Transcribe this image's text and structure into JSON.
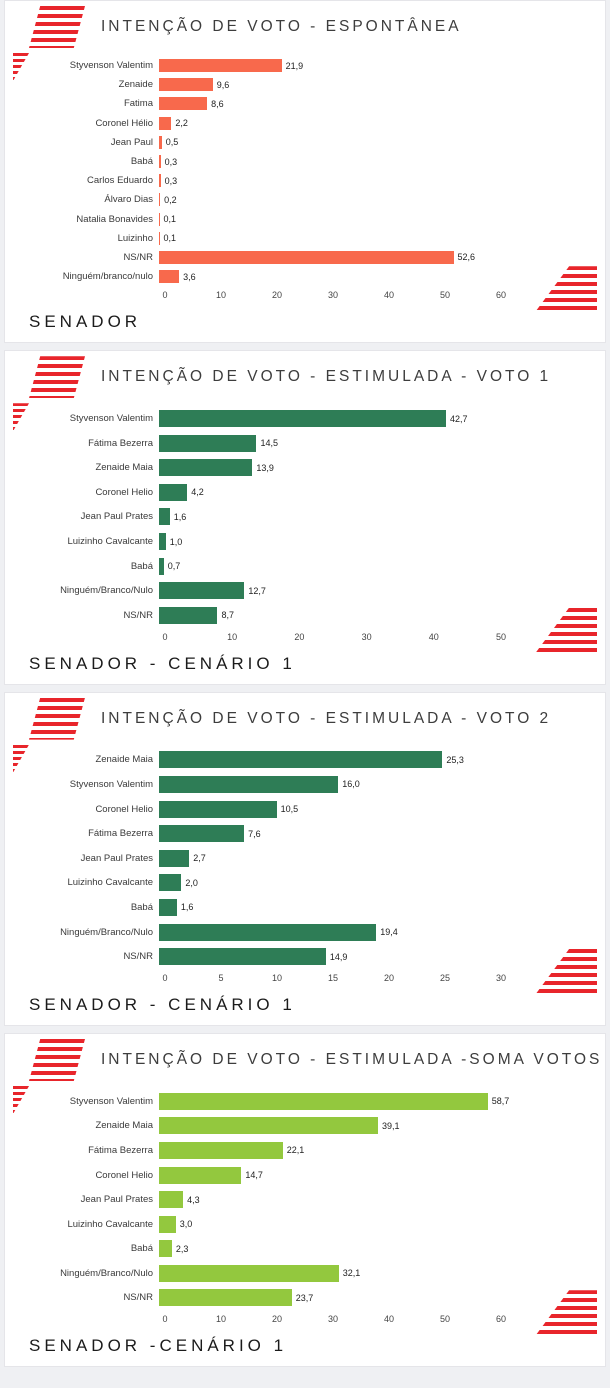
{
  "page": {
    "background_color": "#eff0f3",
    "card_color": "#ffffff",
    "brand_stripe_color": "#e8252b"
  },
  "chart_data": [
    {
      "type": "bar",
      "orientation": "horizontal",
      "title": "INTENÇÃO DE VOTO - ESPONTÂNEA",
      "footer": "SENADOR",
      "bar_color": "#f8694c",
      "grid": false,
      "legend": "none",
      "categories": [
        "Styvenson Valentim",
        "Zenaide",
        "Fatima",
        "Coronel Hélio",
        "Jean Paul",
        "Babá",
        "Carlos Eduardo",
        "Álvaro Dias",
        "Natalia Bonavides",
        "Luizinho",
        "NS/NR",
        "Ninguém/branco/nulo"
      ],
      "values": [
        21.9,
        9.6,
        8.6,
        2.2,
        0.5,
        0.3,
        0.3,
        0.2,
        0.1,
        0.1,
        52.6,
        3.6
      ],
      "value_labels": [
        "21,9",
        "9,6",
        "8,6",
        "2,2",
        "0,5",
        "0,3",
        "0,3",
        "0,2",
        "0,1",
        "0,1",
        "52,6",
        "3,6"
      ],
      "xlim": [
        0,
        60
      ],
      "ticks": [
        0,
        10,
        20,
        30,
        40,
        50,
        60
      ],
      "tick_labels": [
        "0",
        "10",
        "20",
        "30",
        "40",
        "50",
        "60"
      ]
    },
    {
      "type": "bar",
      "orientation": "horizontal",
      "title": "INTENÇÃO DE VOTO - ESTIMULADA - VOTO 1",
      "footer": "SENADOR - CENÁRIO 1",
      "bar_color": "#2e7d56",
      "grid": false,
      "legend": "none",
      "categories": [
        "Styvenson Valentim",
        "Fátima Bezerra",
        "Zenaide Maia",
        "Coronel Helio",
        "Jean Paul Prates",
        "Luizinho Cavalcante",
        "Babá",
        "Ninguém/Branco/Nulo",
        "NS/NR"
      ],
      "values": [
        42.7,
        14.5,
        13.9,
        4.2,
        1.6,
        1.0,
        0.7,
        12.7,
        8.7
      ],
      "value_labels": [
        "42,7",
        "14,5",
        "13,9",
        "4,2",
        "1,6",
        "1,0",
        "0,7",
        "12,7",
        "8,7"
      ],
      "xlim": [
        0,
        50
      ],
      "ticks": [
        0,
        10,
        20,
        30,
        40,
        50
      ],
      "tick_labels": [
        "0",
        "10",
        "20",
        "30",
        "40",
        "50"
      ]
    },
    {
      "type": "bar",
      "orientation": "horizontal",
      "title": "INTENÇÃO DE VOTO - ESTIMULADA - VOTO 2",
      "footer": "SENADOR - CENÁRIO 1",
      "bar_color": "#2e7d56",
      "grid": false,
      "legend": "none",
      "categories": [
        "Zenaide Maia",
        "Styvenson Valentim",
        "Coronel Helio",
        "Fátima Bezerra",
        "Jean Paul Prates",
        "Luizinho Cavalcante",
        "Babá",
        "Ninguém/Branco/Nulo",
        "NS/NR"
      ],
      "values": [
        25.3,
        16.0,
        10.5,
        7.6,
        2.7,
        2.0,
        1.6,
        19.4,
        14.9
      ],
      "value_labels": [
        "25,3",
        "16,0",
        "10,5",
        "7,6",
        "2,7",
        "2,0",
        "1,6",
        "19,4",
        "14,9"
      ],
      "xlim": [
        0,
        30
      ],
      "ticks": [
        0,
        5,
        10,
        15,
        20,
        25,
        30
      ],
      "tick_labels": [
        "0",
        "5",
        "10",
        "15",
        "20",
        "25",
        "30"
      ]
    },
    {
      "type": "bar",
      "orientation": "horizontal",
      "title": "INTENÇÃO DE VOTO - ESTIMULADA -SOMA VOTOS",
      "footer": "SENADOR -CENÁRIO 1",
      "bar_color": "#93c83e",
      "grid": false,
      "legend": "none",
      "categories": [
        "Styvenson Valentim",
        "Zenaide Maia",
        "Fátima Bezerra",
        "Coronel Helio",
        "Jean Paul Prates",
        "Luizinho Cavalcante",
        "Babá",
        "Ninguém/Branco/Nulo",
        "NS/NR"
      ],
      "values": [
        58.7,
        39.1,
        22.1,
        14.7,
        4.3,
        3.0,
        2.3,
        32.1,
        23.7
      ],
      "value_labels": [
        "58,7",
        "39,1",
        "22,1",
        "14,7",
        "4,3",
        "3,0",
        "2,3",
        "32,1",
        "23,7"
      ],
      "xlim": [
        0,
        60
      ],
      "ticks": [
        0,
        10,
        20,
        30,
        40,
        50,
        60
      ],
      "tick_labels": [
        "0",
        "10",
        "20",
        "30",
        "40",
        "50",
        "60"
      ]
    }
  ]
}
